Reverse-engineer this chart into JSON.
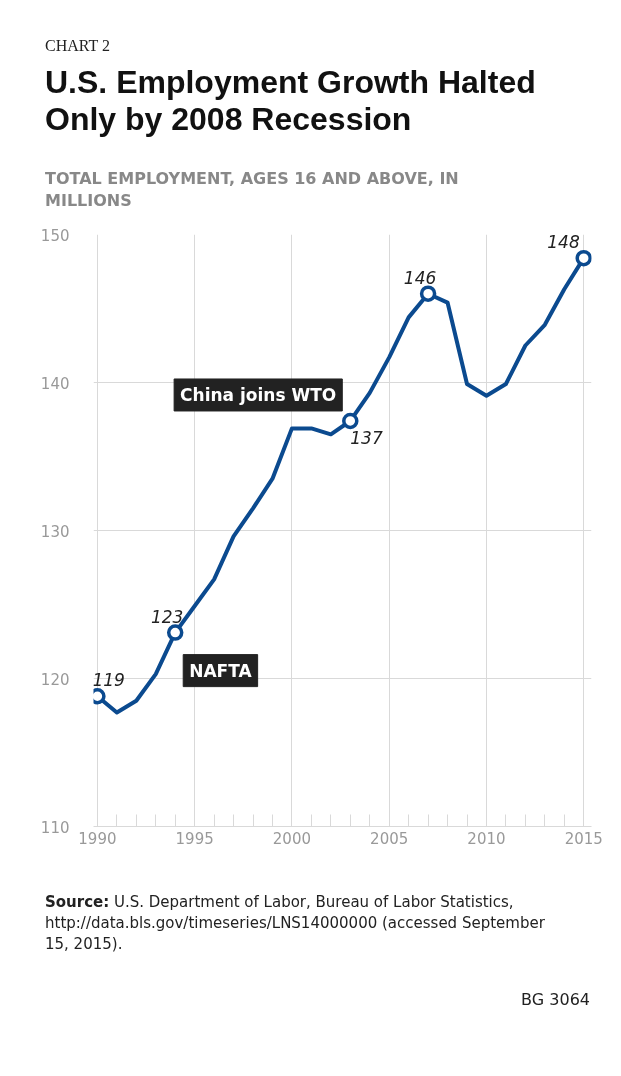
{
  "chart_data": {
    "type": "line",
    "title": "U.S. Employment Growth Halted Only by 2008 Recession",
    "ylabel": "TOTAL EMPLOYMENT, AGES 16 AND ABOVE, IN MILLIONS",
    "xlim": [
      1989.8,
      2015.4
    ],
    "ylim": [
      110,
      150
    ],
    "xticks": [
      1990,
      {
        "value": 1991,
        "label": null
      },
      {
        "value": 1992,
        "label": null
      },
      {
        "value": 1993,
        "label": null
      },
      {
        "value": 1994,
        "label": null
      },
      1995,
      {
        "value": 1996,
        "label": null
      },
      {
        "value": 1997,
        "label": null
      },
      {
        "value": 1998,
        "label": null
      },
      {
        "value": 1999,
        "label": null
      },
      2000,
      {
        "value": 2001,
        "label": null
      },
      {
        "value": 2002,
        "label": null
      },
      {
        "value": 2003,
        "label": null
      },
      {
        "value": 2004,
        "label": null
      },
      2005,
      {
        "value": 2006,
        "label": null
      },
      {
        "value": 2007,
        "label": null
      },
      {
        "value": 2008,
        "label": null
      },
      {
        "value": 2009,
        "label": null
      },
      2010,
      {
        "value": 2011,
        "label": null
      },
      {
        "value": 2012,
        "label": null
      },
      {
        "value": 2013,
        "label": null
      },
      {
        "value": 2014,
        "label": null
      },
      2015
    ],
    "yticks": [
      110,
      120,
      130,
      140,
      150
    ],
    "grid": true,
    "line_style": "solid",
    "series": [
      {
        "color": "#0b4a8f",
        "marker": "none",
        "x": [
          1990,
          1991,
          1992,
          1993,
          1994,
          1995,
          1996,
          1997,
          1998,
          1999,
          2000,
          2001,
          2002,
          2003,
          2004,
          2005,
          2006,
          2007,
          2008,
          2009,
          2010,
          2011,
          2012,
          2013,
          2014,
          2015
        ],
        "values": [
          118.8,
          117.7,
          118.5,
          120.3,
          123.1,
          124.9,
          126.7,
          129.6,
          131.5,
          133.5,
          136.9,
          136.9,
          136.5,
          137.4,
          139.3,
          141.7,
          144.4,
          146.0,
          145.4,
          139.9,
          139.1,
          139.9,
          142.5,
          143.9,
          146.3,
          148.4
        ]
      },
      {
        "type": "scatter",
        "color": "#0b4a8f",
        "marker": "circle",
        "x": [
          1990,
          1994,
          2003,
          2007,
          2015
        ],
        "values": [
          118.8,
          123.1,
          137.4,
          146.0,
          148.4
        ],
        "value_labels": [
          "119",
          "123",
          "137",
          "146",
          "148"
        ]
      }
    ],
    "annotations": [
      "CHART 2",
      {
        "text": "China joins WTO",
        "x": 2003,
        "y": 137.4
      },
      {
        "text": "NAFTA",
        "x": 1994,
        "y": 123.1
      },
      "Source: U.S. Department of Labor, Bureau of Labor Statistics, http://data.bls.gov/timeseries/LNS14000000 (accessed September 15, 2015).",
      "BG 3064"
    ]
  }
}
